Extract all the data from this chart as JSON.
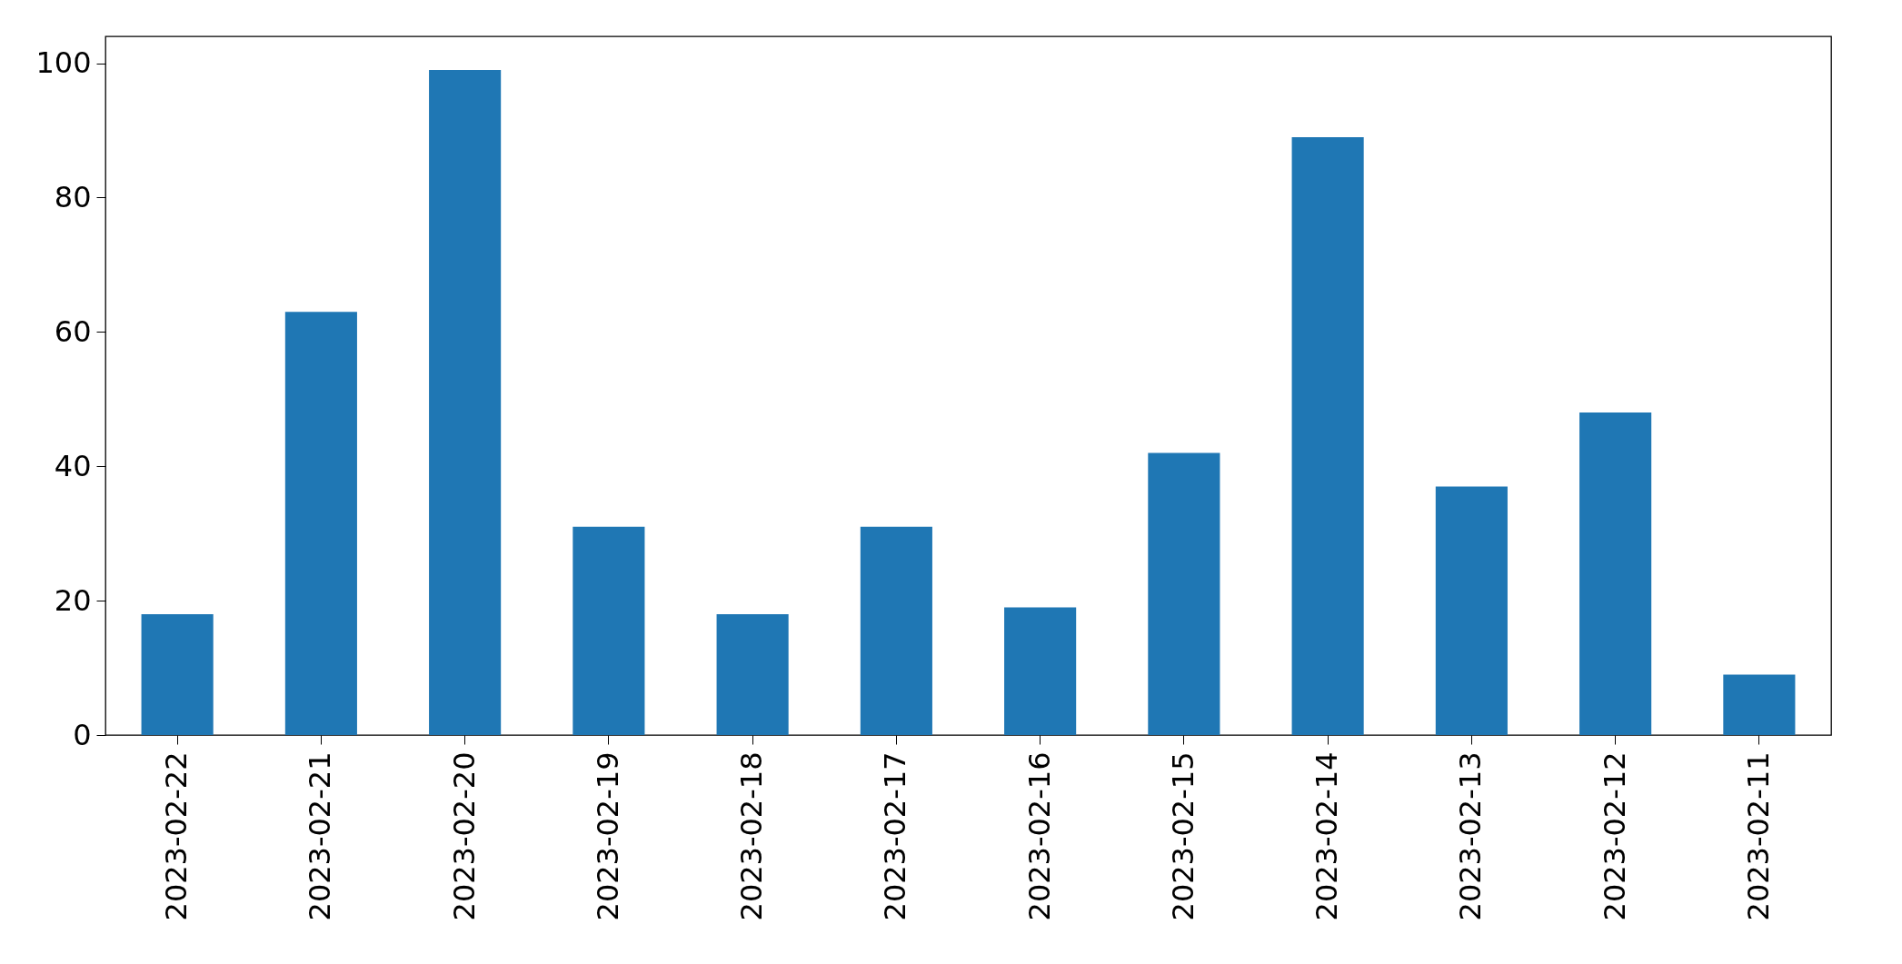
{
  "chart_data": {
    "type": "bar",
    "categories": [
      "2023-02-22",
      "2023-02-21",
      "2023-02-20",
      "2023-02-19",
      "2023-02-18",
      "2023-02-17",
      "2023-02-16",
      "2023-02-15",
      "2023-02-14",
      "2023-02-13",
      "2023-02-12",
      "2023-02-11"
    ],
    "values": [
      18,
      63,
      99,
      31,
      18,
      31,
      19,
      42,
      89,
      37,
      48,
      9
    ],
    "color": "#1f77b4",
    "ylim": [
      0,
      104
    ],
    "yticks": [
      0,
      20,
      40,
      60,
      80,
      100
    ],
    "grid": false
  }
}
